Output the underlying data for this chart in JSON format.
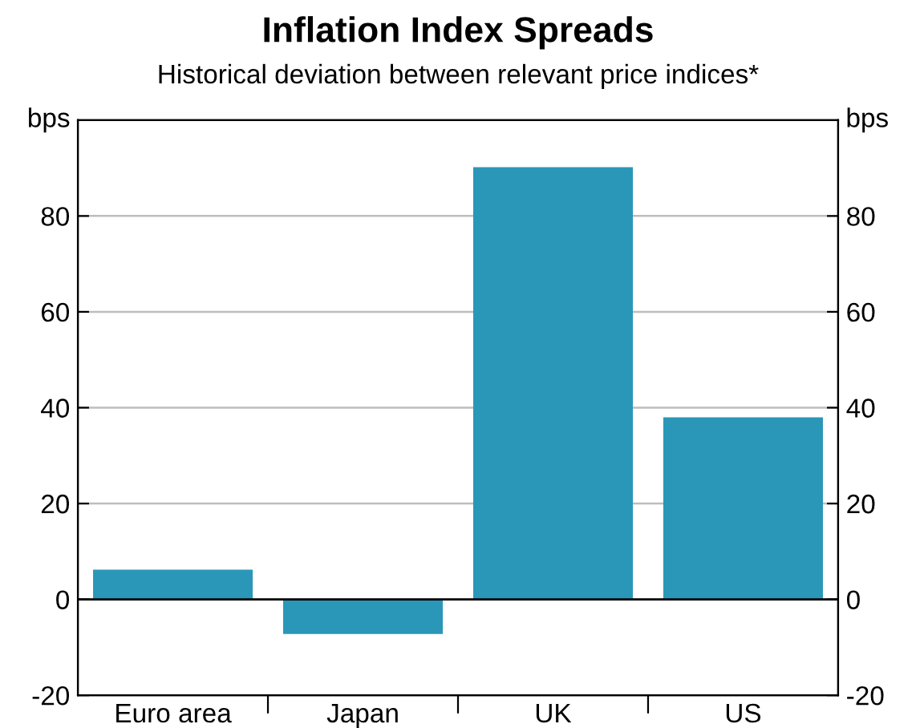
{
  "chart_data": {
    "type": "bar",
    "title": "Inflation Index Spreads",
    "subtitle": "Historical deviation between relevant price indices*",
    "ylabel": "bps",
    "y2label": "bps",
    "categories": [
      "Euro area",
      "Japan",
      "UK",
      "US"
    ],
    "values": [
      6.2,
      -7.2,
      90.2,
      38.0
    ],
    "color": "#2a97b8",
    "ylim": [
      -20,
      100
    ],
    "yticks": [
      -20,
      0,
      20,
      40,
      60,
      80
    ],
    "y2lim": [
      -20,
      100
    ],
    "y2ticks": [
      -20,
      0,
      20,
      40,
      60,
      80
    ],
    "ref_lines": [
      {
        "axis": "y",
        "value": 0,
        "color": "#000000"
      }
    ],
    "grid": "y"
  }
}
